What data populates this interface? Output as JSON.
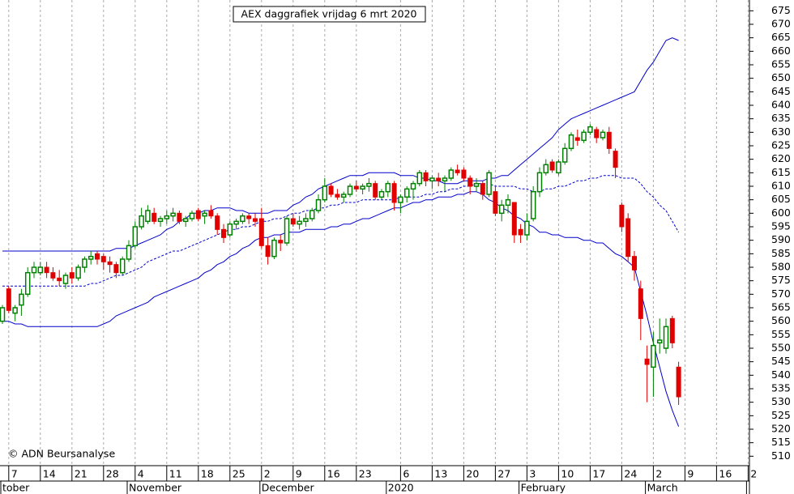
{
  "chart_data": {
    "type": "candlestick",
    "title": "AEX daggrafiek vrijdag 6 mrt 2020",
    "annotation": "© ADN Beursanalyse",
    "categories": [
      null,
      "7",
      null,
      null,
      null,
      null,
      "14",
      null,
      null,
      null,
      null,
      "21",
      null,
      null,
      null,
      null,
      "28",
      null,
      null,
      null,
      null,
      "4",
      null,
      null,
      null,
      null,
      "11",
      null,
      null,
      null,
      null,
      "18",
      null,
      null,
      null,
      null,
      "25",
      null,
      null,
      null,
      null,
      "2",
      null,
      null,
      null,
      null,
      "9",
      null,
      null,
      null,
      null,
      "16",
      null,
      null,
      null,
      null,
      "23",
      null,
      null,
      null,
      null,
      null,
      null,
      "6",
      null,
      null,
      null,
      null,
      "13",
      null,
      null,
      null,
      null,
      "20",
      null,
      null,
      null,
      null,
      "27",
      null,
      null,
      null,
      null,
      "3",
      null,
      null,
      null,
      null,
      "10",
      null,
      null,
      null,
      null,
      "17",
      null,
      null,
      null,
      null,
      "24",
      null,
      null,
      null,
      null,
      "2",
      null,
      null,
      null,
      null,
      "9",
      null,
      null,
      null,
      null,
      "16",
      null,
      null,
      null,
      null,
      "2"
    ],
    "month_labels": [
      "tober",
      null,
      null,
      null,
      null,
      null,
      null,
      null,
      null,
      null,
      null,
      null,
      null,
      null,
      null,
      null,
      null,
      null,
      null,
      null,
      "November",
      null,
      null,
      null,
      null,
      null,
      null,
      null,
      null,
      null,
      null,
      null,
      null,
      null,
      null,
      null,
      null,
      null,
      null,
      null,
      null,
      "December",
      null,
      null,
      null,
      null,
      null,
      null,
      null,
      null,
      null,
      null,
      null,
      null,
      null,
      null,
      null,
      null,
      null,
      null,
      null,
      "2020",
      null,
      null,
      null,
      null,
      null,
      null,
      null,
      null,
      null,
      null,
      null,
      null,
      null,
      null,
      null,
      null,
      null,
      null,
      null,
      null,
      "February",
      null,
      null,
      null,
      null,
      null,
      null,
      null,
      null,
      null,
      null,
      null,
      null,
      null,
      null,
      null,
      null,
      null,
      null,
      null,
      "March",
      null,
      null,
      null,
      null,
      null,
      null,
      null,
      null,
      null,
      null,
      null,
      null,
      null,
      null,
      null
    ],
    "open": [
      560,
      572,
      563,
      566,
      570,
      578,
      578,
      580,
      578,
      576,
      574,
      578,
      576,
      580,
      583,
      585,
      584,
      582,
      581,
      578,
      583,
      588,
      595,
      597,
      600,
      597,
      598,
      599,
      600,
      597,
      598,
      601,
      599,
      601,
      599,
      594,
      592,
      596,
      597,
      599,
      598,
      598,
      588,
      584,
      590,
      589,
      598,
      596,
      597,
      598,
      601,
      605,
      610,
      607,
      606,
      607,
      610,
      609,
      610,
      611,
      606,
      608,
      611,
      604,
      606,
      609,
      611,
      615,
      612,
      613,
      612,
      613,
      616,
      616,
      613,
      610,
      611,
      607,
      608,
      600,
      603,
      604,
      594,
      592,
      598,
      608,
      615,
      619,
      615,
      619,
      624,
      628,
      627,
      630,
      631,
      628,
      630,
      623,
      603,
      598,
      584,
      572,
      546,
      543,
      552,
      550,
      561,
      543,
      null,
      null,
      null,
      null,
      null,
      null,
      null,
      null,
      null,
      null,
      null
    ],
    "high": [
      566,
      573,
      566,
      572,
      580,
      582,
      582,
      582,
      580,
      579,
      578,
      580,
      581,
      584,
      586,
      586,
      585,
      584,
      582,
      584,
      590,
      597,
      602,
      603,
      602,
      599,
      601,
      602,
      601,
      599,
      601,
      602,
      601,
      603,
      600,
      596,
      597,
      598,
      600,
      600,
      600,
      602,
      591,
      591,
      592,
      599,
      600,
      599,
      600,
      602,
      607,
      613,
      611,
      609,
      608,
      611,
      612,
      611,
      613,
      612,
      609,
      612,
      612,
      607,
      610,
      612,
      616,
      616,
      614,
      615,
      614,
      617,
      618,
      617,
      614,
      613,
      612,
      616,
      610,
      605,
      607,
      604,
      596,
      600,
      610,
      617,
      620,
      620,
      620,
      626,
      630,
      631,
      631,
      633,
      632,
      631,
      632,
      624,
      604,
      600,
      586,
      575,
      551,
      556,
      561,
      561,
      562,
      545,
      null,
      null,
      null,
      null,
      null,
      null,
      null,
      null,
      null,
      null,
      null
    ],
    "low": [
      559,
      563,
      560,
      562,
      569,
      576,
      577,
      576,
      575,
      573,
      572,
      574,
      575,
      578,
      581,
      581,
      579,
      578,
      576,
      577,
      582,
      587,
      594,
      596,
      596,
      595,
      596,
      597,
      596,
      595,
      597,
      597,
      596,
      598,
      592,
      589,
      591,
      594,
      596,
      596,
      595,
      587,
      581,
      583,
      586,
      588,
      595,
      594,
      595,
      597,
      600,
      604,
      606,
      605,
      604,
      606,
      608,
      607,
      608,
      605,
      605,
      606,
      601,
      600,
      604,
      605,
      610,
      610,
      609,
      610,
      608,
      612,
      614,
      612,
      607,
      608,
      605,
      606,
      599,
      597,
      600,
      589,
      589,
      590,
      597,
      606,
      614,
      615,
      614,
      618,
      623,
      625,
      626,
      629,
      626,
      627,
      622,
      613,
      593,
      582,
      575,
      553,
      530,
      532,
      548,
      548,
      550,
      529,
      null,
      null,
      null,
      null,
      null,
      null,
      null,
      null,
      null,
      null,
      null
    ],
    "close": [
      565,
      564,
      565,
      570,
      578,
      580,
      580,
      578,
      576,
      575,
      577,
      576,
      580,
      583,
      584,
      583,
      582,
      581,
      578,
      583,
      588,
      595,
      599,
      601,
      597,
      598,
      599,
      600,
      597,
      598,
      600,
      598,
      600,
      599,
      594,
      591,
      596,
      597,
      599,
      598,
      597,
      588,
      584,
      590,
      589,
      598,
      596,
      597,
      598,
      601,
      605,
      610,
      607,
      606,
      607,
      610,
      609,
      610,
      611,
      606,
      608,
      611,
      604,
      606,
      609,
      611,
      615,
      612,
      613,
      612,
      613,
      616,
      615,
      613,
      610,
      611,
      607,
      615,
      600,
      603,
      605,
      592,
      592,
      597,
      608,
      615,
      618,
      616,
      619,
      624,
      629,
      627,
      630,
      632,
      628,
      630,
      624,
      617,
      595,
      584,
      579,
      561,
      544,
      551,
      553,
      558,
      552,
      532,
      null,
      null,
      null,
      null,
      null,
      null,
      null,
      null,
      null,
      null,
      null
    ],
    "up_color": "#008000",
    "down_color": "#e00000",
    "bands": [
      {
        "style": "solid",
        "color": "#0000cc",
        "values": [
          586,
          586,
          586,
          586,
          586,
          586,
          586,
          586,
          586,
          586,
          586,
          586,
          586,
          586,
          586,
          586,
          586,
          586,
          587,
          587,
          587,
          588,
          589,
          590,
          591,
          592,
          594,
          595,
          597,
          598,
          600,
          600,
          601,
          601,
          602,
          602,
          602,
          601,
          601,
          600,
          600,
          600,
          600,
          601,
          601,
          601,
          603,
          604,
          606,
          607,
          609,
          610,
          611,
          612,
          613,
          614,
          614,
          614,
          615,
          615,
          615,
          615,
          615,
          614,
          614,
          614,
          613,
          613,
          612,
          612,
          611,
          611,
          611,
          612,
          612,
          612,
          612,
          613,
          613,
          614,
          614,
          616,
          618,
          620,
          622,
          624,
          626,
          628,
          631,
          633,
          635,
          636,
          637,
          638,
          639,
          640,
          641,
          642,
          643,
          644,
          645,
          649,
          653,
          656,
          660,
          664,
          665,
          664,
          null,
          null,
          null,
          null,
          null,
          null,
          null,
          null,
          null,
          null,
          null
        ]
      },
      {
        "style": "dashed",
        "color": "#0000cc",
        "values": [
          573,
          573,
          573,
          573,
          573,
          573,
          573,
          573,
          573,
          573,
          573,
          573,
          573,
          573,
          574,
          574,
          575,
          576,
          577,
          577,
          578,
          579,
          580,
          582,
          583,
          584,
          585,
          586,
          586,
          587,
          588,
          589,
          590,
          591,
          592,
          593,
          594,
          594,
          595,
          595,
          596,
          597,
          597,
          598,
          598,
          599,
          600,
          600,
          601,
          601,
          602,
          602,
          603,
          603,
          604,
          604,
          604,
          605,
          605,
          605,
          605,
          605,
          605,
          606,
          606,
          606,
          606,
          607,
          607,
          608,
          608,
          609,
          609,
          610,
          610,
          611,
          611,
          611,
          610,
          610,
          610,
          610,
          609,
          609,
          608,
          608,
          609,
          609,
          610,
          610,
          611,
          612,
          612,
          613,
          613,
          614,
          614,
          614,
          613,
          613,
          613,
          611,
          608,
          606,
          603,
          601,
          597,
          593,
          null,
          null,
          null,
          null,
          null,
          null,
          null,
          null,
          null,
          null,
          null
        ]
      },
      {
        "style": "solid",
        "color": "#0000cc",
        "values": [
          560,
          560,
          559,
          559,
          558,
          558,
          558,
          558,
          558,
          558,
          558,
          558,
          558,
          558,
          558,
          558,
          559,
          560,
          562,
          563,
          564,
          565,
          566,
          567,
          569,
          570,
          571,
          572,
          573,
          574,
          575,
          576,
          578,
          579,
          581,
          582,
          584,
          585,
          587,
          588,
          590,
          591,
          591,
          592,
          592,
          593,
          593,
          593,
          594,
          594,
          594,
          594,
          595,
          595,
          596,
          596,
          597,
          598,
          598,
          599,
          600,
          601,
          602,
          602,
          603,
          604,
          604,
          605,
          605,
          606,
          606,
          606,
          607,
          607,
          608,
          608,
          607,
          605,
          604,
          602,
          601,
          599,
          598,
          596,
          595,
          593,
          593,
          592,
          592,
          591,
          591,
          591,
          590,
          590,
          589,
          589,
          587,
          585,
          584,
          582,
          580,
          571,
          562,
          552,
          543,
          534,
          527,
          521,
          null,
          null,
          null,
          null,
          null,
          null,
          null,
          null,
          null,
          null,
          null
        ]
      }
    ],
    "ylim": [
      506.5,
      679
    ],
    "yticks": [
      510,
      515,
      520,
      525,
      530,
      535,
      540,
      545,
      550,
      555,
      560,
      565,
      570,
      575,
      580,
      585,
      590,
      595,
      600,
      605,
      610,
      615,
      620,
      625,
      630,
      635,
      640,
      645,
      650,
      655,
      660,
      665,
      670,
      675
    ],
    "grid": "vertical-dashed"
  }
}
